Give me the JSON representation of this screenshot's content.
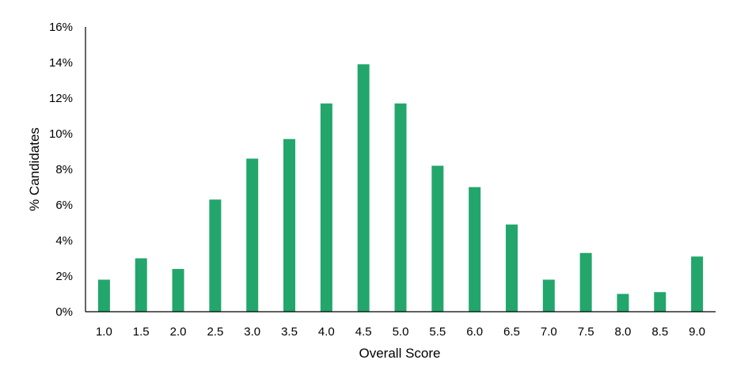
{
  "chart_data": {
    "type": "bar",
    "title": "",
    "xlabel": "Overall Score",
    "ylabel": "% Candidates",
    "categories": [
      "1.0",
      "1.5",
      "2.0",
      "2.5",
      "3.0",
      "3.5",
      "4.0",
      "4.5",
      "5.0",
      "5.5",
      "6.0",
      "6.5",
      "7.0",
      "7.5",
      "8.0",
      "8.5",
      "9.0"
    ],
    "values": [
      1.8,
      3.0,
      2.4,
      6.3,
      8.6,
      9.7,
      11.7,
      13.9,
      11.7,
      8.2,
      7.0,
      4.9,
      1.8,
      3.3,
      1.0,
      1.1,
      3.1
    ],
    "y_unit": "%",
    "ylim": [
      0,
      16
    ],
    "y_ticks": [
      0,
      2,
      4,
      6,
      8,
      10,
      12,
      14,
      16
    ],
    "y_tick_labels": [
      "0%",
      "2%",
      "4%",
      "6%",
      "8%",
      "10%",
      "12%",
      "14%",
      "16%"
    ],
    "grid": false,
    "legend": "none",
    "bar_color": "#22a66b",
    "axis_color": "#000000"
  }
}
